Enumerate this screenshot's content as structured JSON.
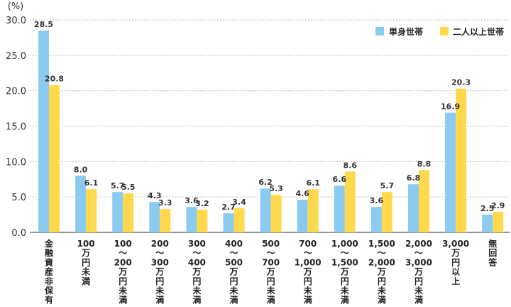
{
  "chart_data": {
    "type": "bar",
    "unit_label": "(%)",
    "yticks": [
      "30.0",
      "25.0",
      "20.0",
      "15.0",
      "10.0",
      "5.0",
      "0.0"
    ],
    "ylim": [
      0,
      30
    ],
    "grid": true,
    "legend_position": "top-right",
    "categories": [
      [
        "金",
        "融",
        "資",
        "産",
        "非",
        "保",
        "有"
      ],
      [
        "100",
        "万",
        "円",
        "未",
        "満"
      ],
      [
        "100",
        "〜",
        "200",
        "万",
        "円",
        "未",
        "満"
      ],
      [
        "200",
        "〜",
        "300",
        "万",
        "円",
        "未",
        "満"
      ],
      [
        "300",
        "〜",
        "400",
        "万",
        "円",
        "未",
        "満"
      ],
      [
        "400",
        "〜",
        "500",
        "万",
        "円",
        "未",
        "満"
      ],
      [
        "500",
        "〜",
        "700",
        "万",
        "円",
        "未",
        "満"
      ],
      [
        "700",
        "〜",
        "1,000",
        "万",
        "円",
        "未",
        "満"
      ],
      [
        "1,000",
        "〜",
        "1,500",
        "万",
        "円",
        "未",
        "満"
      ],
      [
        "1,500",
        "〜",
        "2,000",
        "万",
        "円",
        "未",
        "満"
      ],
      [
        "2,000",
        "〜",
        "3,000",
        "万",
        "円",
        "未",
        "満"
      ],
      [
        "3,000",
        "万",
        "円",
        "以",
        "上"
      ],
      [
        "無",
        "回",
        "答"
      ]
    ],
    "series": [
      {
        "name": "単身世帯",
        "color": "#8ccbf0",
        "values": [
          28.5,
          8.0,
          5.7,
          4.3,
          3.6,
          2.7,
          6.2,
          4.6,
          6.6,
          3.6,
          6.8,
          16.9,
          2.5
        ],
        "labels": [
          "28.5",
          "8.0",
          "5.7",
          "4.3",
          "3.6",
          "2.7",
          "6.2",
          "4.6",
          "6.6",
          "3.6",
          "6.8",
          "16.9",
          "2.5"
        ]
      },
      {
        "name": "二人以上世帯",
        "color": "#ffd84c",
        "values": [
          20.8,
          6.1,
          5.5,
          3.3,
          3.2,
          3.4,
          5.3,
          6.1,
          8.6,
          5.7,
          8.8,
          20.3,
          2.9
        ],
        "labels": [
          "20.8",
          "6.1",
          "5.5",
          "3.3",
          "3.2",
          "3.4",
          "5.3",
          "6.1",
          "8.6",
          "5.7",
          "8.8",
          "20.3",
          "2.9"
        ]
      }
    ]
  }
}
